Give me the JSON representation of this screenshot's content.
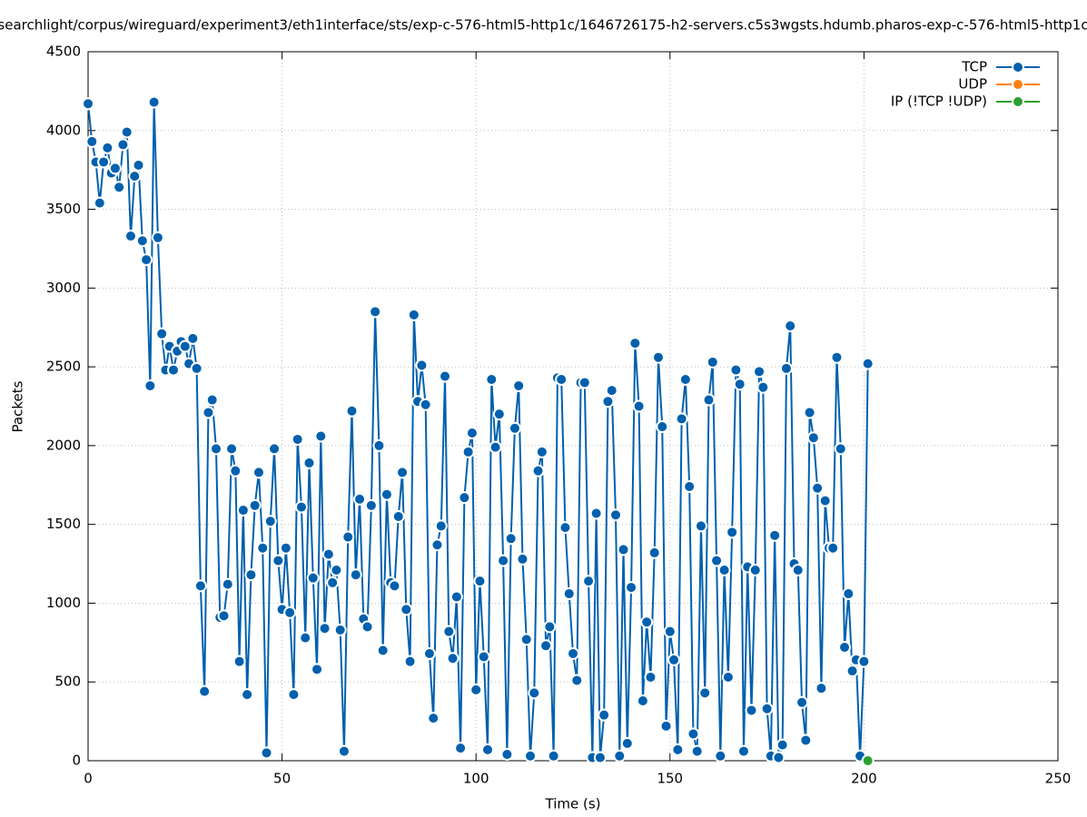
{
  "chart_data": {
    "type": "line",
    "title": "searchlight/corpus/wireguard/experiment3/eth1interface/sts/exp-c-576-html5-http1c/1646726175-h2-servers.c5s3wgsts.hdumb.pharos-exp-c-576-html5-http1c",
    "xlabel": "Time (s)",
    "ylabel": "Packets",
    "xlim": [
      0,
      250
    ],
    "xticks": [
      0,
      50,
      100,
      150,
      200,
      250
    ],
    "ylim": [
      0,
      4500
    ],
    "yticks": [
      0,
      500,
      1000,
      1500,
      2000,
      2500,
      3000,
      3500,
      4000,
      4500
    ],
    "grid": true,
    "legend": "top-right",
    "series": [
      {
        "name": "TCP",
        "color": "#0060ad",
        "x": [
          0,
          1,
          2,
          3,
          4,
          5,
          6,
          7,
          8,
          9,
          10,
          11,
          12,
          13,
          14,
          15,
          16,
          17,
          18,
          19,
          20,
          21,
          22,
          23,
          24,
          25,
          26,
          27,
          28,
          29,
          30,
          31,
          32,
          33,
          34,
          35,
          36,
          37,
          38,
          39,
          40,
          41,
          42,
          43,
          44,
          45,
          46,
          47,
          48,
          49,
          50,
          51,
          52,
          53,
          54,
          55,
          56,
          57,
          58,
          59,
          60,
          61,
          62,
          63,
          64,
          65,
          66,
          67,
          68,
          69,
          70,
          71,
          72,
          73,
          74,
          75,
          76,
          77,
          78,
          79,
          80,
          81,
          82,
          83,
          84,
          85,
          86,
          87,
          88,
          89,
          90,
          91,
          92,
          93,
          94,
          95,
          96,
          97,
          98,
          99,
          100,
          101,
          102,
          103,
          104,
          105,
          106,
          107,
          108,
          109,
          110,
          111,
          112,
          113,
          114,
          115,
          116,
          117,
          118,
          119,
          120,
          121,
          122,
          123,
          124,
          125,
          126,
          127,
          128,
          129,
          130,
          131,
          132,
          133,
          134,
          135,
          136,
          137,
          138,
          139,
          140,
          141,
          142,
          143,
          144,
          145,
          146,
          147,
          148,
          149,
          150,
          151,
          152,
          153,
          154,
          155,
          156,
          157,
          158,
          159,
          160,
          161,
          162,
          163,
          164,
          165,
          166,
          167,
          168,
          169,
          170,
          171,
          172,
          173,
          174,
          175,
          176,
          177,
          178,
          179,
          180,
          181,
          182,
          183,
          184,
          185,
          186,
          187,
          188,
          189,
          190,
          191,
          192,
          193,
          194,
          195,
          196,
          197,
          198,
          199,
          200,
          201
        ],
        "values": [
          4170,
          3930,
          3800,
          3540,
          3800,
          3890,
          3730,
          3760,
          3640,
          3910,
          3990,
          3330,
          3710,
          3780,
          3300,
          3180,
          2380,
          4180,
          3320,
          2710,
          2480,
          2630,
          2480,
          2600,
          2660,
          2630,
          2520,
          2680,
          2490,
          1110,
          440,
          2210,
          2290,
          1980,
          910,
          920,
          1120,
          1980,
          1840,
          630,
          1590,
          420,
          1180,
          1620,
          1830,
          1350,
          50,
          1520,
          1980,
          1270,
          960,
          1350,
          940,
          420,
          2040,
          1610,
          780,
          1890,
          1160,
          580,
          2060,
          840,
          1310,
          1130,
          1210,
          830,
          60,
          1420,
          2220,
          1180,
          1660,
          900,
          850,
          1620,
          2850,
          2000,
          700,
          1690,
          1130,
          1110,
          1550,
          1830,
          960,
          630,
          2830,
          2280,
          2510,
          2260,
          680,
          270,
          1370,
          1490,
          2440,
          820,
          650,
          1040,
          80,
          1670,
          1960,
          2080,
          450,
          1140,
          660,
          70,
          2420,
          1990,
          2200,
          1270,
          40,
          1410,
          2110,
          2380,
          1280,
          770,
          30,
          430,
          1840,
          1960,
          730,
          850,
          30,
          2430,
          2420,
          1480,
          1060,
          680,
          510,
          2400,
          2400,
          1140,
          20,
          1570,
          20,
          290,
          2280,
          2350,
          1560,
          30,
          1340,
          110,
          1100,
          2650,
          2250,
          380,
          880,
          530,
          1320,
          2560,
          2120,
          220,
          820,
          640,
          70,
          2170,
          2420,
          1740,
          170,
          60,
          1490,
          430,
          2290,
          2530,
          1270,
          30,
          1210,
          530,
          1450,
          2480,
          2390,
          60,
          1230,
          320,
          1210,
          2470,
          2370,
          330,
          30,
          1430,
          20,
          100,
          2490,
          2760,
          1250,
          1210,
          370,
          130,
          2210,
          2050,
          1730,
          460,
          1650,
          1350,
          1350,
          2560,
          1980,
          720,
          1060,
          570,
          640,
          30,
          630,
          2520
        ]
      },
      {
        "name": "UDP",
        "color": "#ff7f0e",
        "x": [],
        "values": []
      },
      {
        "name": "IP (!TCP  !UDP)",
        "color": "#2ca02c",
        "x": [
          201
        ],
        "values": [
          0
        ]
      }
    ]
  }
}
